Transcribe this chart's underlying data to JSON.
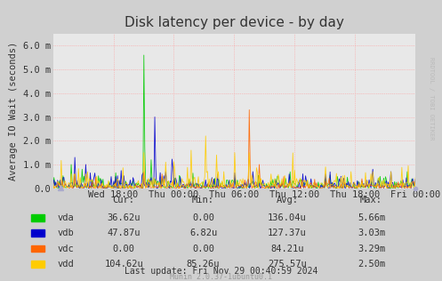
{
  "title": "Disk latency per device - by day",
  "ylabel": "Average IO Wait (seconds)",
  "background_color": "#d0d0d0",
  "plot_bg_color": "#e8e8e8",
  "grid_color": "#ff9999",
  "title_fontsize": 11,
  "axis_label_fontsize": 7.5,
  "tick_fontsize": 7.5,
  "ylim": [
    0,
    0.0065
  ],
  "yticks": [
    0.0,
    0.001,
    0.002,
    0.003,
    0.004,
    0.005,
    0.006
  ],
  "ytick_labels": [
    "0.0",
    "1.0 m",
    "2.0 m",
    "3.0 m",
    "4.0 m",
    "5.0 m",
    "6.0 m"
  ],
  "xtick_labels": [
    "Wed 18:00",
    "Thu 00:00",
    "Thu 06:00",
    "Thu 12:00",
    "Thu 18:00",
    "Fri 00:00"
  ],
  "devices": [
    "vda",
    "vdb",
    "vdc",
    "vdd"
  ],
  "colors": [
    "#00cc00",
    "#0000cc",
    "#ff6600",
    "#ffcc00"
  ],
  "legend_cur": [
    "36.62u",
    "47.87u",
    "0.00",
    "104.62u"
  ],
  "legend_min": [
    "0.00",
    "6.82u",
    "0.00",
    "85.26u"
  ],
  "legend_avg": [
    "136.04u",
    "127.37u",
    "84.21u",
    "275.57u"
  ],
  "legend_max": [
    "5.66m",
    "3.03m",
    "3.29m",
    "2.50m"
  ],
  "last_update": "Last update: Fri Nov 29 00:40:59 2024",
  "munin_version": "Munin 2.0.37-1ubuntu0.1",
  "rrdtool_text": "RRDTOOL / TOBI OETIKER",
  "n_points": 400
}
